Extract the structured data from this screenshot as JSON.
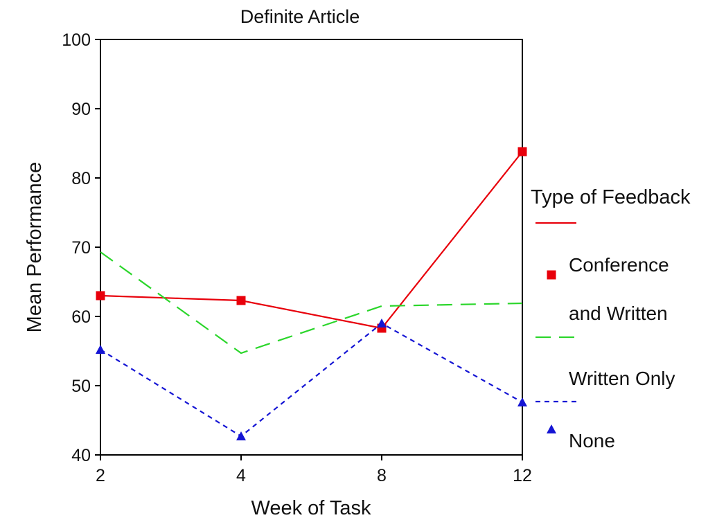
{
  "chart_data": {
    "type": "line",
    "title": "Definite Article",
    "xlabel": "Week of Task",
    "ylabel": "Mean Performance",
    "categories": [
      "2",
      "4",
      "8",
      "12"
    ],
    "ylim": [
      40,
      100
    ],
    "yticks": [
      "40",
      "50",
      "60",
      "70",
      "80",
      "90",
      "100"
    ],
    "grid": false,
    "legend_position": "right",
    "legend_title": "Type of Feedback",
    "series": [
      {
        "name": "Conference and Written",
        "name_lines": [
          "Conference",
          "and Written"
        ],
        "values": [
          63,
          62.3,
          58.3,
          83.8
        ],
        "color": "#e8000b",
        "dash": "solid",
        "marker": "square"
      },
      {
        "name": "Written Only",
        "name_lines": [
          "Written Only"
        ],
        "values": [
          69.3,
          54.7,
          61.5,
          61.9
        ],
        "color": "#2bd62b",
        "dash": "dashed",
        "marker": "none"
      },
      {
        "name": "None",
        "name_lines": [
          "None"
        ],
        "values": [
          55.2,
          42.7,
          59,
          47.6
        ],
        "color": "#1515d4",
        "dash": "dotted",
        "marker": "triangle"
      }
    ]
  }
}
